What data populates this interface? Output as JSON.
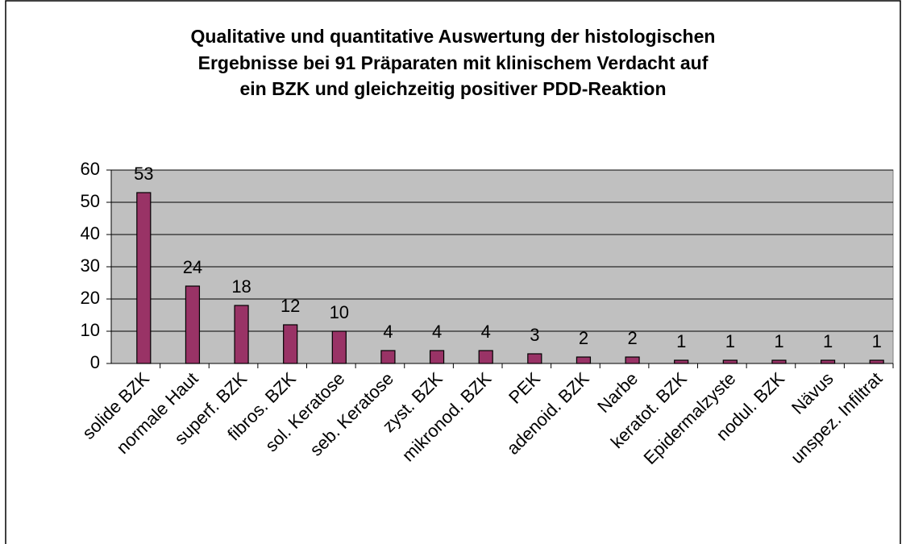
{
  "chart_data": {
    "type": "bar",
    "title": [
      "Qualitative und quantitative Auswertung der histologischen",
      "Ergebnisse bei 91 Präparaten mit klinischem Verdacht auf",
      "ein BZK und gleichzeitig positiver PDD-Reaktion"
    ],
    "categories": [
      "solide BZK",
      "normale Haut",
      "superf. BZK",
      "fibros. BZK",
      "sol. Keratose",
      "seb. Keratose",
      "zyst. BZK",
      "mikronod. BZK",
      "PEK",
      "adenoid. BZK",
      "Narbe",
      "keratot. BZK",
      "Epidermalzyste",
      "nodul. BZK",
      "Nävus",
      "unspez. Infiltrat"
    ],
    "values": [
      53,
      24,
      18,
      12,
      10,
      4,
      4,
      4,
      3,
      2,
      2,
      1,
      1,
      1,
      1,
      1
    ],
    "color": "#993366",
    "ylim": [
      0,
      60
    ],
    "yticks": [
      0,
      10,
      20,
      30,
      40,
      50,
      60
    ],
    "grid": true
  }
}
